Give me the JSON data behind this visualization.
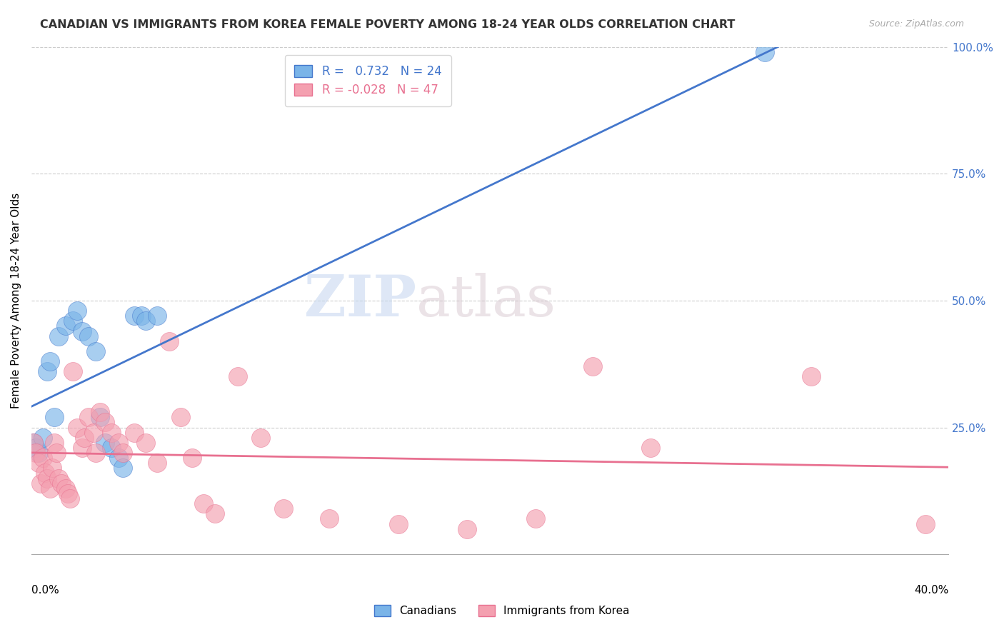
{
  "title": "CANADIAN VS IMMIGRANTS FROM KOREA FEMALE POVERTY AMONG 18-24 YEAR OLDS CORRELATION CHART",
  "source": "Source: ZipAtlas.com",
  "ylabel": "Female Poverty Among 18-24 Year Olds",
  "xlim": [
    0.0,
    0.4
  ],
  "ylim": [
    0.0,
    1.0
  ],
  "canadians_r": 0.732,
  "canadians_n": 24,
  "korea_r": -0.028,
  "korea_n": 47,
  "canadians_color": "#7ab4e8",
  "korea_color": "#f4a0b0",
  "trend_canadian_color": "#4477cc",
  "trend_korea_color": "#e87090",
  "watermark_zip": "ZIP",
  "watermark_atlas": "atlas",
  "canadians_x": [
    0.001,
    0.002,
    0.003,
    0.005,
    0.007,
    0.008,
    0.01,
    0.012,
    0.015,
    0.018,
    0.02,
    0.022,
    0.025,
    0.028,
    0.03,
    0.032,
    0.035,
    0.038,
    0.04,
    0.045,
    0.048,
    0.05,
    0.055,
    0.32
  ],
  "canadians_y": [
    0.22,
    0.21,
    0.2,
    0.23,
    0.36,
    0.38,
    0.27,
    0.43,
    0.45,
    0.46,
    0.48,
    0.44,
    0.43,
    0.4,
    0.27,
    0.22,
    0.21,
    0.19,
    0.17,
    0.47,
    0.47,
    0.46,
    0.47,
    0.99
  ],
  "korea_x": [
    0.001,
    0.002,
    0.003,
    0.004,
    0.005,
    0.006,
    0.007,
    0.008,
    0.009,
    0.01,
    0.011,
    0.012,
    0.013,
    0.015,
    0.016,
    0.017,
    0.018,
    0.02,
    0.022,
    0.023,
    0.025,
    0.027,
    0.028,
    0.03,
    0.032,
    0.035,
    0.038,
    0.04,
    0.045,
    0.05,
    0.055,
    0.06,
    0.065,
    0.07,
    0.075,
    0.08,
    0.09,
    0.1,
    0.11,
    0.13,
    0.16,
    0.19,
    0.22,
    0.34,
    0.39,
    0.245,
    0.27
  ],
  "korea_y": [
    0.22,
    0.2,
    0.18,
    0.14,
    0.19,
    0.16,
    0.15,
    0.13,
    0.17,
    0.22,
    0.2,
    0.15,
    0.14,
    0.13,
    0.12,
    0.11,
    0.36,
    0.25,
    0.21,
    0.23,
    0.27,
    0.24,
    0.2,
    0.28,
    0.26,
    0.24,
    0.22,
    0.2,
    0.24,
    0.22,
    0.18,
    0.42,
    0.27,
    0.19,
    0.1,
    0.08,
    0.35,
    0.23,
    0.09,
    0.07,
    0.06,
    0.05,
    0.07,
    0.35,
    0.06,
    0.37,
    0.21
  ],
  "legend_label_canadians": "Canadians",
  "legend_label_korea": "Immigrants from Korea"
}
